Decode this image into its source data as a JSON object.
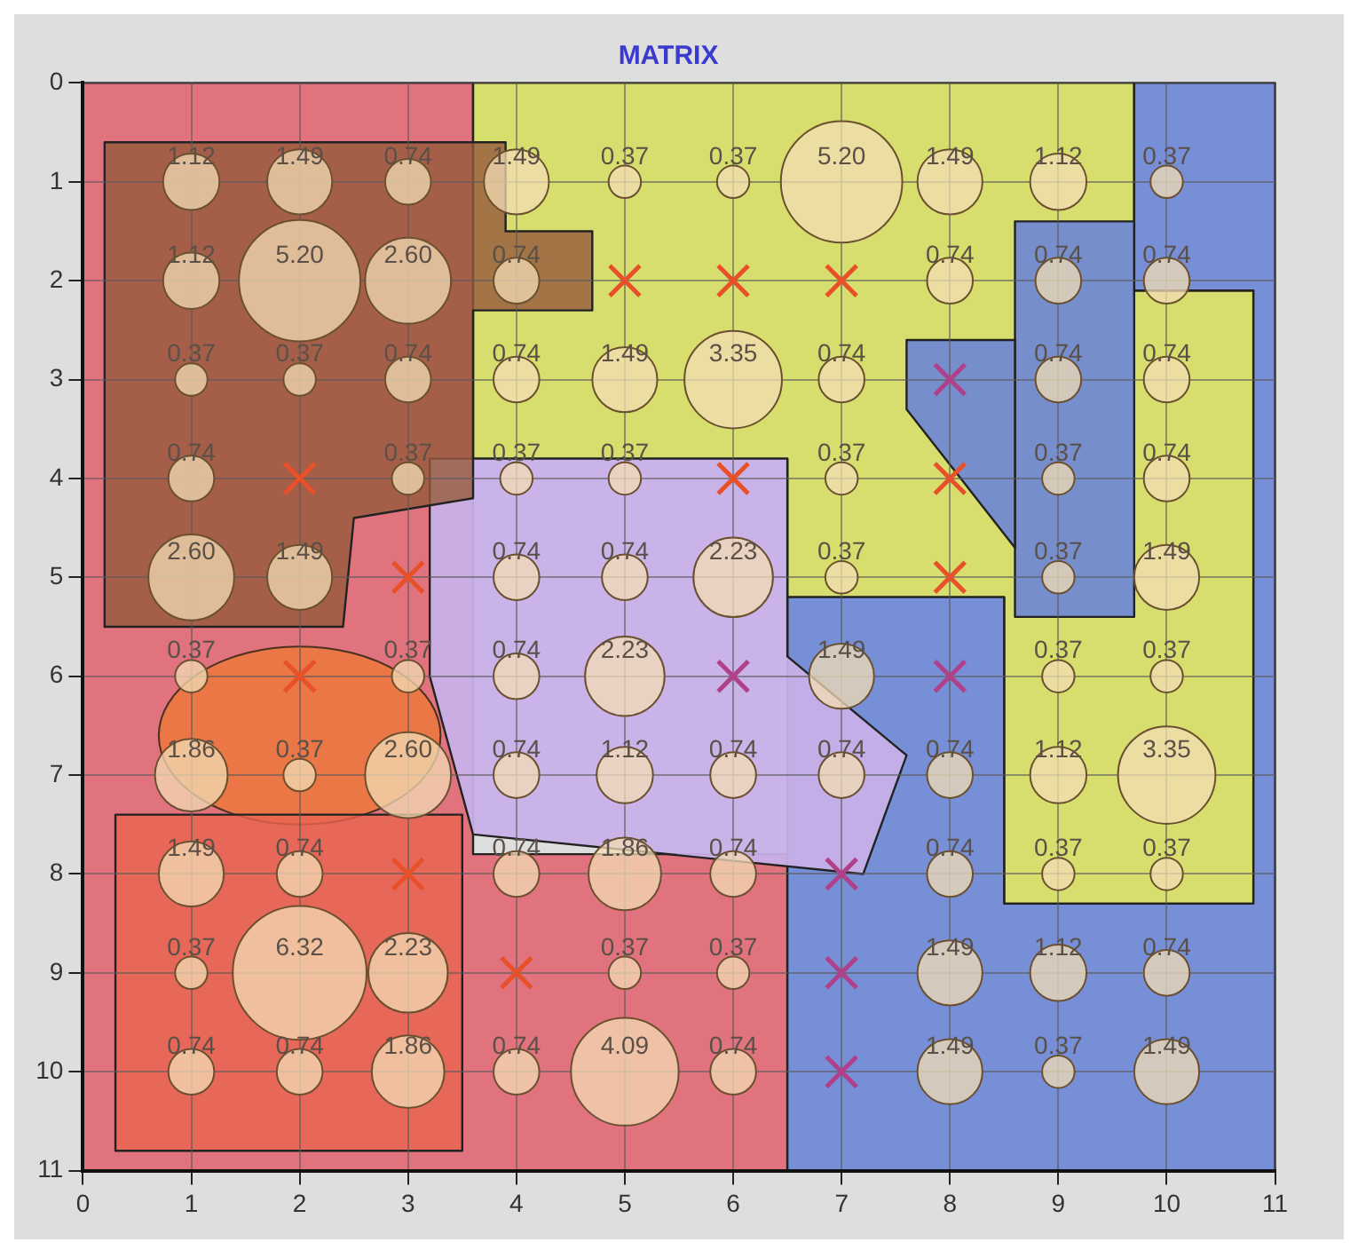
{
  "chart_data": {
    "type": "bubble",
    "title": "MATRIX",
    "xlim": [
      0,
      11
    ],
    "ylim": [
      11,
      0
    ],
    "xticks": [
      0,
      1,
      2,
      3,
      4,
      5,
      6,
      7,
      8,
      9,
      10,
      11
    ],
    "yticks": [
      0,
      1,
      2,
      3,
      4,
      5,
      6,
      7,
      8,
      9,
      10,
      11
    ],
    "grid": true,
    "series": [
      {
        "color": "#f3dcb4",
        "marker": "circle",
        "x": [
          1,
          2,
          3,
          4,
          5,
          6,
          7,
          8,
          9,
          10,
          1,
          2,
          3,
          4,
          8,
          9,
          10,
          1,
          2,
          3,
          4,
          5,
          6,
          7,
          9,
          10,
          1,
          3,
          4,
          5,
          7,
          9,
          10,
          1,
          2,
          4,
          5,
          6,
          7,
          9,
          10,
          1,
          3,
          4,
          5,
          7,
          9,
          10,
          1,
          2,
          3,
          4,
          5,
          6,
          7,
          8,
          9,
          10,
          1,
          2,
          4,
          5,
          6,
          8,
          9,
          10,
          1,
          2,
          3,
          5,
          6,
          8,
          9,
          10,
          1,
          2,
          3,
          4,
          5,
          6,
          8,
          9,
          10
        ],
        "values": [
          1,
          1,
          1,
          1,
          1,
          1,
          1,
          1,
          1,
          1,
          2,
          2,
          2,
          2,
          2,
          2,
          2,
          3,
          3,
          3,
          3,
          3,
          3,
          3,
          3,
          3,
          4,
          4,
          4,
          4,
          4,
          4,
          4,
          5,
          5,
          5,
          5,
          5,
          5,
          5,
          5,
          6,
          6,
          6,
          6,
          6,
          6,
          6,
          7,
          7,
          7,
          7,
          7,
          7,
          7,
          7,
          7,
          7,
          8,
          8,
          8,
          8,
          8,
          8,
          8,
          8,
          9,
          9,
          9,
          9,
          9,
          9,
          9,
          9,
          10,
          10,
          10,
          10,
          10,
          10,
          10,
          10,
          10
        ],
        "sizes": [
          1.12,
          1.49,
          0.74,
          1.49,
          0.37,
          0.37,
          5.2,
          1.49,
          1.12,
          0.37,
          1.12,
          5.2,
          2.6,
          0.74,
          0.74,
          0.74,
          0.74,
          0.37,
          0.37,
          0.74,
          0.74,
          1.49,
          3.35,
          0.74,
          0.74,
          0.74,
          0.74,
          0.37,
          0.37,
          0.37,
          0.37,
          0.37,
          0.74,
          2.6,
          1.49,
          0.74,
          0.74,
          2.23,
          0.37,
          0.37,
          1.49,
          0.37,
          0.37,
          0.74,
          2.23,
          1.49,
          0.37,
          0.37,
          1.86,
          0.37,
          2.6,
          0.74,
          1.12,
          0.74,
          0.74,
          0.74,
          1.12,
          3.35,
          1.49,
          0.74,
          0.74,
          1.86,
          0.74,
          0.74,
          0.37,
          0.37,
          0.37,
          6.32,
          2.23,
          0.37,
          0.37,
          1.49,
          1.12,
          0.74,
          0.74,
          0.74,
          1.86,
          0.74,
          4.09,
          0.74,
          1.49,
          0.37,
          1.49
        ],
        "value_labels": [
          "1.12",
          "1.49",
          "0.74",
          "1.49",
          "0.37",
          "0.37",
          "5.20",
          "1.49",
          "1.12",
          "0.37",
          "1.12",
          "5.20",
          "2.60",
          "0.74",
          "0.74",
          "0.74",
          "0.74",
          "0.37",
          "0.37",
          "0.74",
          "0.74",
          "1.49",
          "3.35",
          "0.74",
          "0.74",
          "0.74",
          "0.74",
          "0.37",
          "0.37",
          "0.37",
          "0.37",
          "0.37",
          "0.74",
          "2.60",
          "1.49",
          "0.74",
          "0.74",
          "2.23",
          "0.37",
          "0.37",
          "1.49",
          "0.37",
          "0.37",
          "0.74",
          "2.23",
          "1.49",
          "0.37",
          "0.37",
          "1.86",
          "0.37",
          "2.60",
          "0.74",
          "1.12",
          "0.74",
          "0.74",
          "0.74",
          "1.12",
          "3.35",
          "1.49",
          "0.74",
          "0.74",
          "1.86",
          "0.74",
          "0.74",
          "0.37",
          "0.37",
          "0.37",
          "6.32",
          "2.23",
          "0.37",
          "0.37",
          "1.49",
          "1.12",
          "0.74",
          "0.74",
          "0.74",
          "1.86",
          "0.74",
          "4.09",
          "0.74",
          "1.49",
          "0.37",
          "1.49"
        ]
      },
      {
        "type": "scatter",
        "color": "#e8502a",
        "marker": "cross",
        "x": [
          5,
          6,
          7,
          2,
          6,
          8,
          8,
          2,
          3,
          4,
          3
        ],
        "values": [
          2,
          2,
          2,
          4,
          4,
          4,
          5,
          6,
          8,
          9,
          5
        ]
      },
      {
        "type": "scatter",
        "color": "#b0408a",
        "marker": "cross",
        "x": [
          8,
          8,
          6,
          7,
          7,
          7
        ],
        "values": [
          3,
          6,
          6,
          8,
          9,
          10
        ]
      }
    ]
  }
}
